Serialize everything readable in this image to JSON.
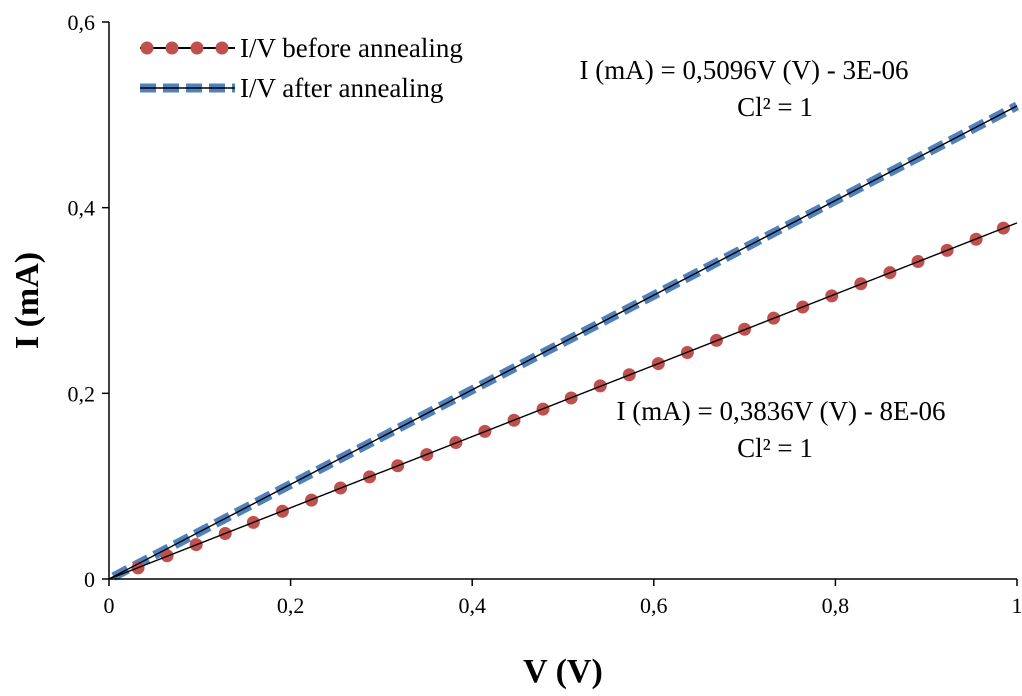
{
  "chart_data": {
    "type": "line",
    "xlabel": "V (V)",
    "ylabel": "I (mA)",
    "xlim": [
      0,
      1
    ],
    "ylim": [
      0,
      0.6
    ],
    "x_ticks": [
      "0",
      "0,2",
      "0,4",
      "0,6",
      "0,8",
      "1"
    ],
    "y_ticks": [
      "0",
      "0,2",
      "0,4",
      "0,6"
    ],
    "x_tick_values": [
      0,
      0.2,
      0.4,
      0.6,
      0.8,
      1
    ],
    "y_tick_values": [
      0,
      0.2,
      0.4,
      0.6
    ],
    "grid": false,
    "legend_position": "top-left",
    "series": [
      {
        "name": "I/V before annealing",
        "marker": "circle",
        "color": "#c0504d",
        "x": [
          0.032,
          0.064,
          0.096,
          0.128,
          0.159,
          0.191,
          0.223,
          0.255,
          0.287,
          0.318,
          0.35,
          0.382,
          0.414,
          0.446,
          0.478,
          0.509,
          0.541,
          0.573,
          0.605,
          0.637,
          0.669,
          0.7,
          0.732,
          0.764,
          0.796,
          0.828,
          0.86,
          0.891,
          0.923,
          0.955,
          0.985
        ],
        "y": [
          0.012,
          0.025,
          0.037,
          0.049,
          0.061,
          0.073,
          0.085,
          0.098,
          0.11,
          0.122,
          0.134,
          0.147,
          0.159,
          0.171,
          0.183,
          0.195,
          0.208,
          0.22,
          0.232,
          0.244,
          0.257,
          0.269,
          0.281,
          0.293,
          0.305,
          0.318,
          0.33,
          0.342,
          0.354,
          0.366,
          0.378
        ]
      },
      {
        "name": "I/V after annealing",
        "marker": "dash",
        "color": "#4f81bd",
        "x": [
          0.005,
          1.0
        ],
        "y": [
          0.0025,
          0.5096
        ]
      }
    ],
    "trendlines": [
      {
        "series": "I/V before annealing",
        "slope": 0.3836,
        "intercept": -8e-06,
        "x_range": [
          0,
          1
        ],
        "color": "#000000"
      },
      {
        "series": "I/V after annealing",
        "slope": 0.5096,
        "intercept": -3e-06,
        "x_range": [
          0,
          1
        ],
        "color": "#000000"
      }
    ],
    "annotations": [
      {
        "text": "I (mA) = 0,5096V (V) - 3E-06",
        "for": "I/V after annealing"
      },
      {
        "text": "Cl² = 1",
        "for": "I/V after annealing"
      },
      {
        "text": "I (mA) = 0,3836V (V) - 8E-06",
        "for": "I/V before annealing"
      },
      {
        "text": "Cl² = 1",
        "for": "I/V before annealing"
      }
    ]
  }
}
